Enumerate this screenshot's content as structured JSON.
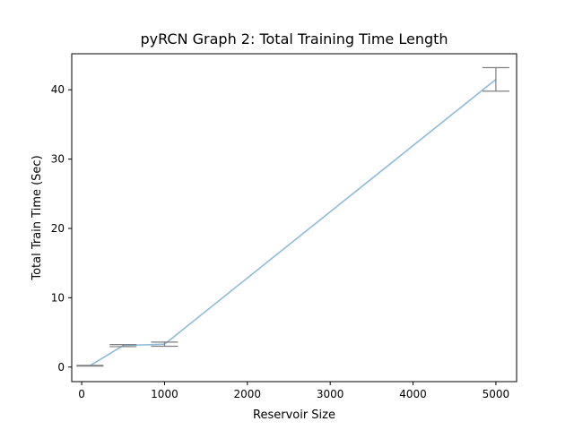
{
  "chart_data": {
    "type": "line",
    "title": "pyRCN Graph 2: Total Training Time Length",
    "xlabel": "Reservoir Size",
    "ylabel": "Total Train Time (Sec)",
    "xlim": [
      -120,
      5250
    ],
    "ylim": [
      -2.1,
      45.2
    ],
    "xticks": [
      0,
      1000,
      2000,
      3000,
      4000,
      5000
    ],
    "yticks": [
      0,
      10,
      20,
      30,
      40
    ],
    "grid": false,
    "series": [
      {
        "x": [
          100,
          500,
          1000,
          5000
        ],
        "y": [
          0.2,
          3.1,
          3.3,
          41.5
        ],
        "yerr": [
          0.05,
          0.15,
          0.3,
          1.7
        ],
        "line_color": "#8ebbd9",
        "errorbar_color": "#7f7f7f"
      }
    ]
  }
}
